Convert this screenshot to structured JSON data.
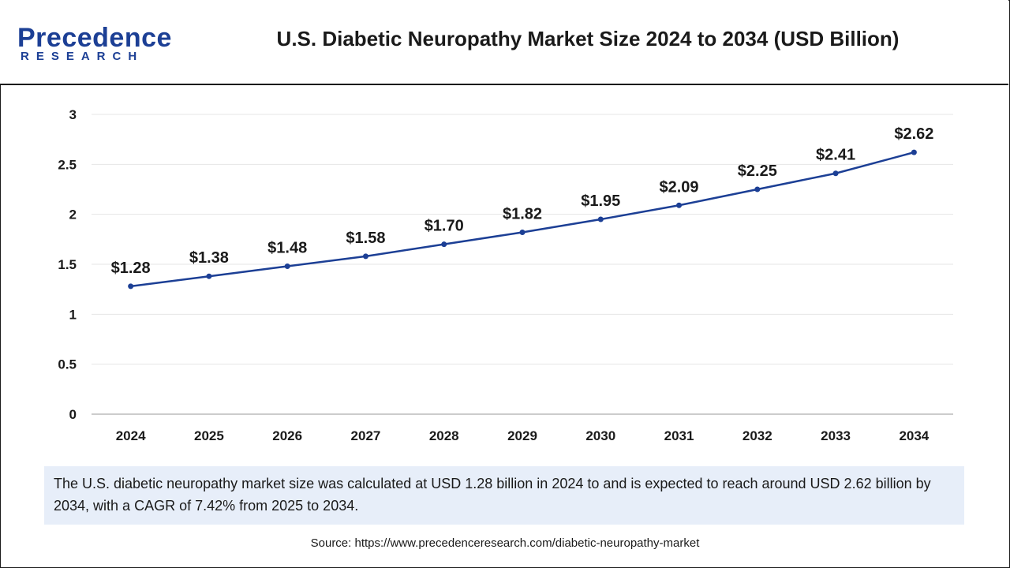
{
  "brand": {
    "name_top": "Precedence",
    "name_bottom": "RESEARCH",
    "color": "#1c3f95"
  },
  "title": "U.S. Diabetic Neuropathy Market Size 2024 to 2034 (USD Billion)",
  "chart_data": {
    "type": "line",
    "categories": [
      "2024",
      "2025",
      "2026",
      "2027",
      "2028",
      "2029",
      "2030",
      "2031",
      "2032",
      "2033",
      "2034"
    ],
    "series": [
      {
        "values": [
          1.28,
          1.38,
          1.48,
          1.58,
          1.7,
          1.82,
          1.95,
          2.09,
          2.25,
          2.41,
          2.62
        ]
      }
    ],
    "data_labels": [
      "$1.28",
      "$1.38",
      "$1.48",
      "$1.58",
      "$1.70",
      "$1.82",
      "$1.95",
      "$2.09",
      "$2.25",
      "$2.41",
      "$2.62"
    ],
    "ylim": [
      0,
      3
    ],
    "yticks": [
      "0",
      "0.5",
      "1",
      "1.5",
      "2",
      "2.5",
      "3"
    ],
    "grid": true,
    "line_color": "#1c3f95"
  },
  "summary": "The U.S. diabetic neuropathy market size was calculated at USD 1.28 billion in 2024 to and is expected to reach around USD 2.62 billion by 2034, with a CAGR of 7.42% from 2025 to 2034.",
  "source": "Source: https://www.precedenceresearch.com/diabetic-neuropathy-market"
}
